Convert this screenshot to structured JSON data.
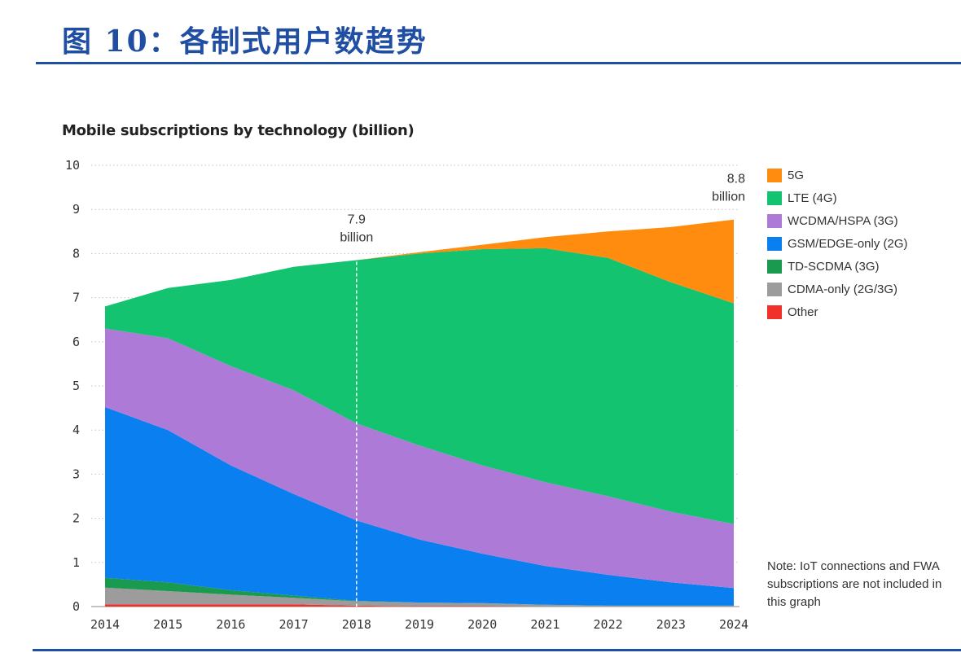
{
  "page": {
    "figure_title": "图 10：各制式用户数趋势",
    "note": "Note: IoT connections and FWA subscriptions are not included in this graph"
  },
  "chart_data": {
    "type": "area",
    "stacked": true,
    "title": "Mobile subscriptions by technology (billion)",
    "xlabel": "",
    "ylabel": "",
    "x": [
      2014,
      2015,
      2016,
      2017,
      2018,
      2019,
      2020,
      2021,
      2022,
      2023,
      2024
    ],
    "x_tick_labels": [
      "2014",
      "2015",
      "2016",
      "2017",
      "2018",
      "2019",
      "2020",
      "2021",
      "2022",
      "2023",
      "2024"
    ],
    "ylim": [
      0,
      10
    ],
    "y_ticks": [
      0,
      1,
      2,
      3,
      4,
      5,
      6,
      7,
      8,
      9,
      10
    ],
    "y_tick_labels": [
      "0",
      "1",
      "2",
      "3",
      "4",
      "5",
      "6",
      "7",
      "8",
      "9",
      "10"
    ],
    "series": [
      {
        "name": "Other",
        "color": "#f0302a",
        "values": [
          0.05,
          0.05,
          0.05,
          0.05,
          0.02,
          0.01,
          0.01,
          0.0,
          0.0,
          0.0,
          0.0
        ]
      },
      {
        "name": "CDMA-only (2G/3G)",
        "color": "#9c9c9c",
        "values": [
          0.38,
          0.3,
          0.22,
          0.15,
          0.1,
          0.08,
          0.07,
          0.04,
          0.02,
          0.02,
          0.02
        ]
      },
      {
        "name": "TD-SCDMA (3G)",
        "color": "#1a9a4f",
        "values": [
          0.22,
          0.2,
          0.1,
          0.05,
          0.01,
          0.0,
          0.0,
          0.0,
          0.0,
          0.0,
          0.0
        ]
      },
      {
        "name": "GSM/EDGE-only (2G)",
        "color": "#0a7ff0",
        "values": [
          3.87,
          3.45,
          2.83,
          2.3,
          1.82,
          1.43,
          1.12,
          0.88,
          0.7,
          0.53,
          0.4
        ]
      },
      {
        "name": "WCDMA/HSPA (3G)",
        "color": "#ae7ad7",
        "values": [
          1.78,
          2.08,
          2.25,
          2.35,
          2.2,
          2.13,
          2.0,
          1.9,
          1.78,
          1.6,
          1.45
        ]
      },
      {
        "name": "LTE (4G)",
        "color": "#13c36f",
        "values": [
          0.5,
          1.14,
          1.95,
          2.8,
          3.7,
          4.35,
          4.9,
          5.3,
          5.4,
          5.2,
          5.0
        ]
      },
      {
        "name": "5G",
        "color": "#ff8c0f",
        "values": [
          0.0,
          0.0,
          0.0,
          0.0,
          0.0,
          0.03,
          0.1,
          0.25,
          0.6,
          1.25,
          1.9
        ]
      }
    ],
    "legend_order": [
      "5G",
      "LTE (4G)",
      "WCDMA/HSPA (3G)",
      "GSM/EDGE-only (2G)",
      "TD-SCDMA (3G)",
      "CDMA-only (2G/3G)",
      "Other"
    ],
    "legend_position": "right",
    "annotations": [
      {
        "x": 2018,
        "value": "7.9",
        "unit": "billion",
        "line": "dashed-vertical"
      },
      {
        "x": 2024,
        "value": "8.8",
        "unit": "billion"
      }
    ],
    "grid": "horizontal-dotted"
  }
}
